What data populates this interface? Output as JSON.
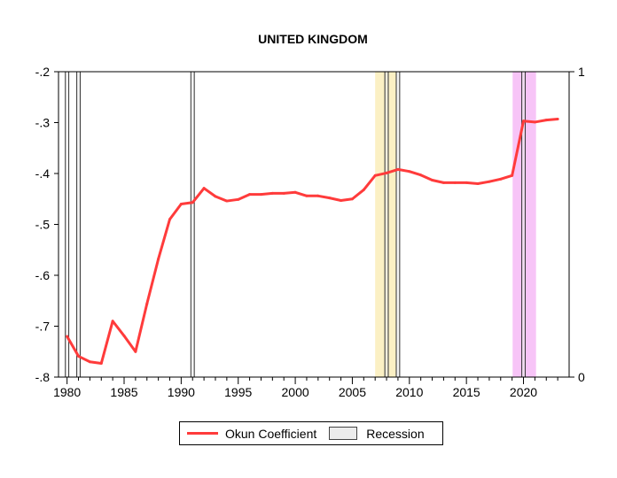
{
  "chart_data": {
    "type": "line",
    "title": "UNITED KINGDOM",
    "xlabel": "",
    "ylabel": "",
    "xlim": [
      1979.25,
      2024.0
    ],
    "ylim": [
      -0.8,
      -0.2
    ],
    "x_ticks": [
      1980,
      1985,
      1990,
      1995,
      2000,
      2005,
      2010,
      2015,
      2020
    ],
    "y_ticks": [
      -0.2,
      -0.3,
      -0.4,
      -0.5,
      -0.6,
      -0.7,
      -0.8
    ],
    "y_tick_labels": [
      "-.2",
      "-.3",
      "-.4",
      "-.5",
      "-.6",
      "-.7",
      "-.8"
    ],
    "y2lim": [
      0,
      1
    ],
    "y2_tick_labels": [
      "1",
      "0"
    ],
    "grid": false,
    "legend_position": "bottom",
    "series": [
      {
        "name": "Okun Coefficient",
        "color": "#ff3b3b",
        "x": [
          1980,
          1981,
          1982,
          1983,
          1984,
          1985,
          1986,
          1987,
          1988,
          1989,
          1990,
          1991,
          1992,
          1993,
          1994,
          1995,
          1996,
          1997,
          1998,
          1999,
          2000,
          2001,
          2002,
          2003,
          2004,
          2005,
          2006,
          2007,
          2008,
          2009,
          2010,
          2011,
          2012,
          2013,
          2014,
          2015,
          2016,
          2017,
          2018,
          2019,
          2020,
          2021,
          2022,
          2023
        ],
        "values": [
          -0.72,
          -0.759,
          -0.77,
          -0.773,
          -0.69,
          -0.719,
          -0.75,
          -0.656,
          -0.568,
          -0.49,
          -0.46,
          -0.457,
          -0.429,
          -0.445,
          -0.454,
          -0.451,
          -0.441,
          -0.441,
          -0.439,
          -0.439,
          -0.437,
          -0.444,
          -0.444,
          -0.448,
          -0.453,
          -0.45,
          -0.432,
          -0.404,
          -0.399,
          -0.392,
          -0.396,
          -0.403,
          -0.413,
          -0.418,
          -0.418,
          -0.418,
          -0.42,
          -0.416,
          -0.411,
          -0.404,
          -0.297,
          -0.299,
          -0.295,
          -0.293
        ]
      }
    ],
    "recession": {
      "name": "Recession",
      "color": "#ececec",
      "years": [
        1980,
        1981,
        1991,
        2008,
        2009,
        2020
      ]
    },
    "highlight_bands": [
      {
        "from": 2007.0,
        "to": 2008.85,
        "color": "#fbf0c4"
      },
      {
        "from": 2019.05,
        "to": 2021.1,
        "color": "#f7c4f7"
      }
    ]
  }
}
